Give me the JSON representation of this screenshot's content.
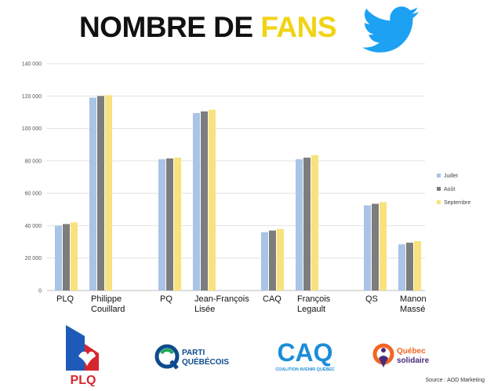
{
  "header": {
    "title_main": "NOMBRE DE ",
    "title_accent": "FANS"
  },
  "chart_data": {
    "type": "bar",
    "title": "NOMBRE DE FANS",
    "xlabel": "",
    "ylabel": "",
    "ylim": [
      0,
      140000
    ],
    "yticks": [
      0,
      20000,
      40000,
      60000,
      80000,
      100000,
      120000,
      140000
    ],
    "ytick_labels": [
      "0",
      "20 000",
      "40 000",
      "60 000",
      "80 000",
      "100 000",
      "120 000",
      "140 000"
    ],
    "grid": true,
    "legend_position": "right",
    "categories": [
      [
        "PLQ"
      ],
      [
        "Philippe",
        "Couillard"
      ],
      [
        "PQ"
      ],
      [
        "Jean-François",
        "Lisée"
      ],
      [
        "CAQ"
      ],
      [
        "François",
        "Legault"
      ],
      [
        "QS"
      ],
      [
        "Manon",
        "Massé"
      ]
    ],
    "series": [
      {
        "name": "Juillet",
        "color": "#a9c4e6",
        "values": [
          40000,
          119000,
          81000,
          109500,
          36000,
          81000,
          52500,
          28500
        ]
      },
      {
        "name": "Août",
        "color": "#7d7d7d",
        "values": [
          41000,
          120000,
          81500,
          110500,
          37000,
          82000,
          53500,
          29500
        ]
      },
      {
        "name": "Septembre",
        "color": "#f8e27d",
        "values": [
          42000,
          120500,
          82000,
          111500,
          38000,
          83500,
          54500,
          30500
        ]
      }
    ]
  },
  "logos": {
    "plq_text": "PLQ",
    "pq_line1": "PARTI",
    "pq_line2": "QUÉBÉCOIS",
    "caq_text": "CAQ",
    "caq_sub": "COALITION AVENIR QUÉBEC",
    "qs_line1": "Québec",
    "qs_line2": "solidaire"
  },
  "footer": {
    "source": "Source : AOD Marketing"
  },
  "colors": {
    "twitter_blue": "#1da1f2",
    "plq_red": "#d7262f",
    "plq_blue": "#1e5bb8",
    "pq_blue": "#0d4c8c",
    "caq_blue": "#1d8dd8",
    "qs_orange": "#f26522",
    "title_accent": "#f2d314"
  }
}
